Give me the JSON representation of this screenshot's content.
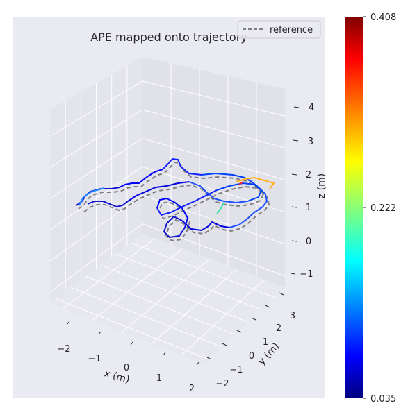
{
  "chart_data": {
    "type": "line",
    "projection": "3d",
    "title": "APE mapped onto trajectory",
    "xlabel": "x (m)",
    "ylabel": "y (m)",
    "zlabel": "z (m)",
    "x_ticks": [
      "−2",
      "−1",
      "0",
      "1",
      "2"
    ],
    "y_ticks": [
      "−2",
      "−1",
      "0",
      "1",
      "2",
      "3"
    ],
    "z_ticks": [
      "−1",
      "0",
      "1",
      "2",
      "3",
      "4"
    ],
    "xlim": [
      -2.5,
      2.5
    ],
    "ylim": [
      -2.5,
      3.5
    ],
    "zlim": [
      -1.5,
      4.5
    ],
    "legend": {
      "entries": [
        "reference"
      ],
      "placement": "top-right"
    },
    "grid": true,
    "colorbar": {
      "colormap": "jet",
      "min_label": "0.035",
      "mid_label": "0.222",
      "max_label": "0.408",
      "min": 0.035,
      "max": 0.408
    },
    "series": [
      {
        "name": "reference",
        "style": "dashed",
        "color": "#808080"
      }
    ]
  },
  "colors": {
    "pane_background": "#eaeaf2",
    "grid": "#ffffff",
    "reference": "#808080",
    "estimate_low": "#0000ff",
    "estimate_high": "#ff0000"
  }
}
